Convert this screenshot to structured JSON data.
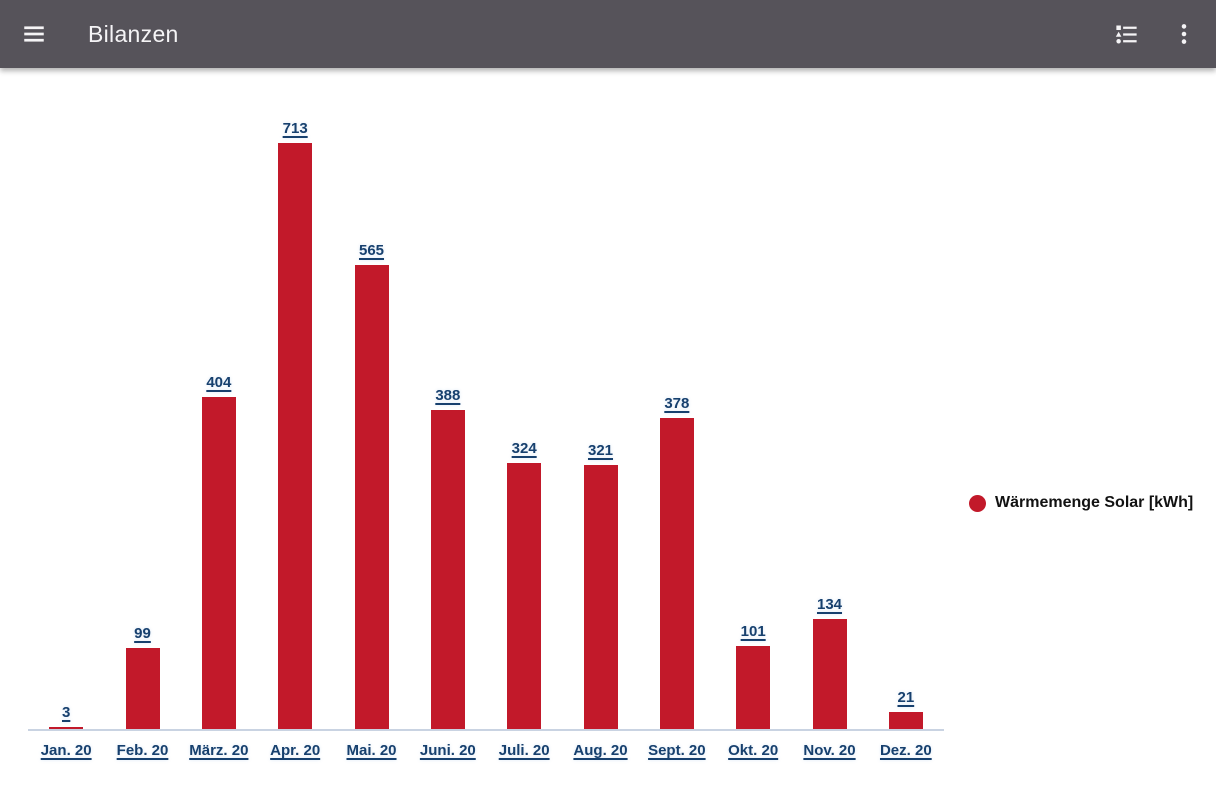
{
  "app_bar": {
    "title": "Bilanzen",
    "icons": {
      "menu": "hamburger-menu",
      "list": "format-list-bulleted-type",
      "overflow": "three-dot-vertical-menu"
    }
  },
  "colors": {
    "app_bar_bg": "#56535a",
    "bar_red": "#c2192a",
    "label_blue": "#17406e",
    "axis_line": "#c9d3e2",
    "legend_text": "#121212"
  },
  "legend": {
    "label": "Wärmemenge Solar [kWh]",
    "marker": "red-circle",
    "position": "right"
  },
  "chart_data": {
    "type": "bar",
    "title": "",
    "xlabel": "",
    "ylabel": "",
    "categories": [
      "Jan. 20",
      "Feb. 20",
      "März. 20",
      "Apr. 20",
      "Mai. 20",
      "Juni. 20",
      "Juli. 20",
      "Aug. 20",
      "Sept. 20",
      "Okt. 20",
      "Nov. 20",
      "Dez. 20"
    ],
    "series": [
      {
        "name": "Wärmemenge Solar [kWh]",
        "values": [
          3,
          99,
          404,
          713,
          565,
          388,
          324,
          321,
          378,
          101,
          134,
          21
        ]
      }
    ],
    "ylim": [
      0,
      804
    ],
    "grid": false,
    "axes_visible": false,
    "value_labels": true,
    "legend_position": "right"
  }
}
